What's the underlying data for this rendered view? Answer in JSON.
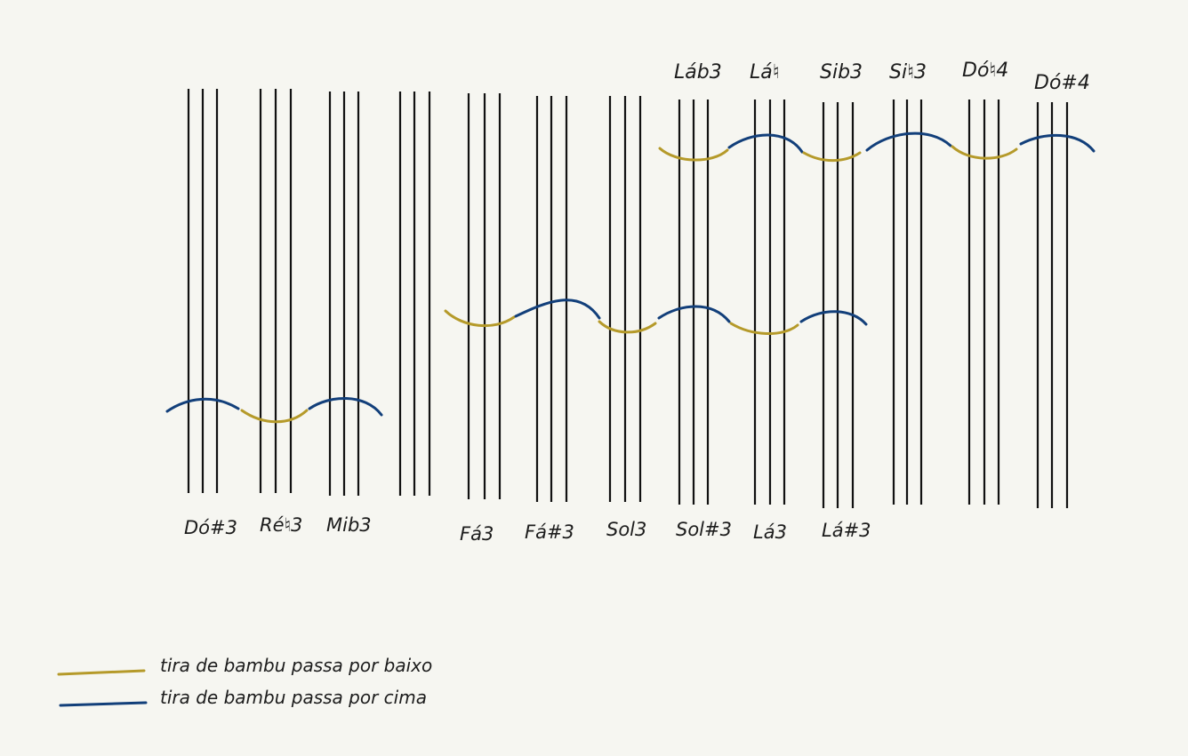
{
  "colors": {
    "below": "#b59a2a",
    "above": "#123f7a",
    "rod": "#111111",
    "background": "#f6f6f1"
  },
  "bottom_labels": [
    "Dó#3",
    "Ré♮3",
    "Mib3",
    "Fá3",
    "Fá#3",
    "Sol3",
    "Sol#3",
    "Lá3",
    "Lá#3"
  ],
  "top_labels": [
    "Láb3",
    "Lá♮",
    "Sib3",
    "Si♮3",
    "Dó♮4",
    "Dó#4"
  ],
  "legend": [
    {
      "text": "tira de bambu passa por baixo",
      "color_key": "below"
    },
    {
      "text": "tira de bambu passa por cima",
      "color_key": "above"
    }
  ]
}
